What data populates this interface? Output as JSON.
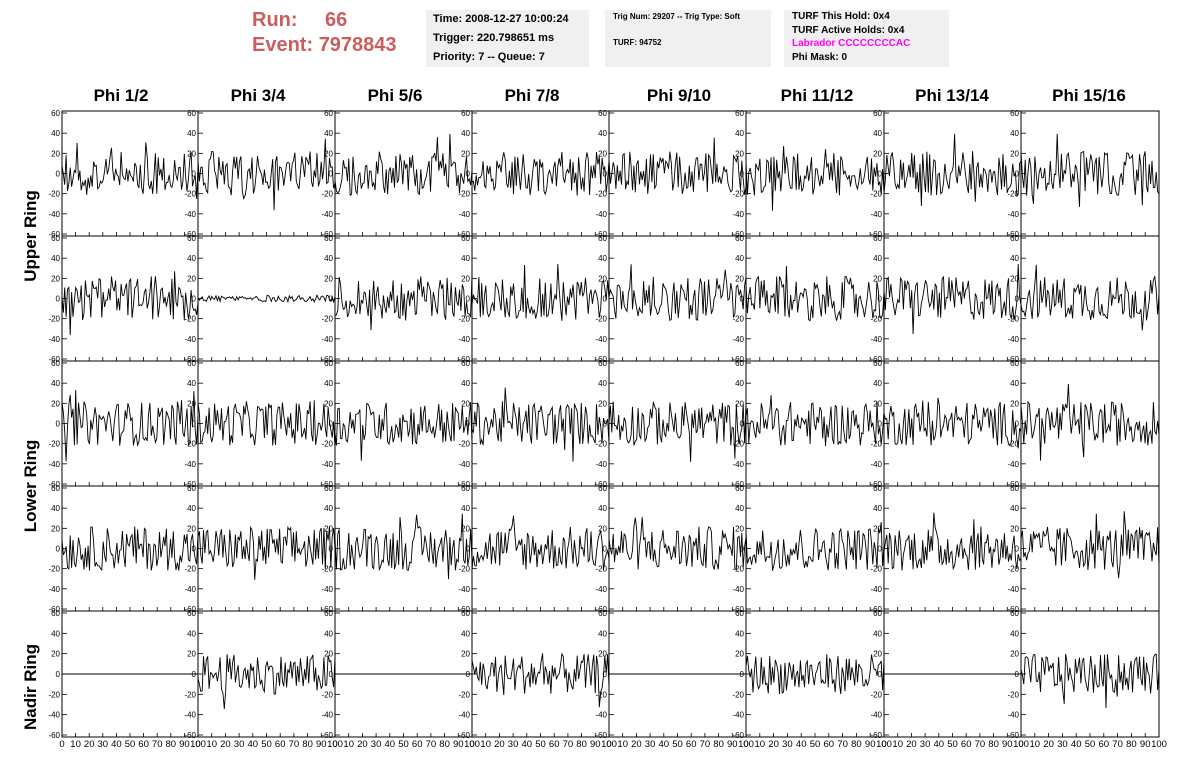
{
  "header": {
    "run_label": "Run:",
    "run_value": "66",
    "event_label": "Event:",
    "event_value": "7978843",
    "time": "Time: 2008-12-27 10:00:24",
    "trigger": "Trigger: 220.798651 ms",
    "priority": "Priority: 7 -- Queue: 7",
    "trig_num": "Trig Num: 29207 -- Trig Type: Soft",
    "turf": "TURF: 94752",
    "turf_this_hold": "TURF This Hold: 0x4",
    "turf_active_holds": "TURF Active Holds: 0x4",
    "labrador": "Labrador CCCCCCCCAC",
    "phi_mask": "Phi Mask: 0"
  },
  "colors": {
    "header_red": "#cd5c5c",
    "labrador_magenta": "#ff00ff",
    "box_bg": "#f0f0f0",
    "trace": "#000000"
  },
  "columns": [
    "Phi 1/2",
    "Phi 3/4",
    "Phi 5/6",
    "Phi 7/8",
    "Phi 9/10",
    "Phi 11/12",
    "Phi 13/14",
    "Phi 15/16"
  ],
  "rings": [
    {
      "label": "Upper Ring",
      "rows": [
        0,
        1
      ]
    },
    {
      "label": "Lower Ring",
      "rows": [
        2,
        3
      ]
    },
    {
      "label": "Nadir Ring",
      "rows": [
        4
      ]
    }
  ],
  "chart_data": {
    "type": "line",
    "grid": false,
    "layout": "5 rows x 8 columns of waveform panels",
    "xlim": [
      0,
      100
    ],
    "ylim": [
      -60,
      60
    ],
    "x_ticks": [
      0,
      10,
      20,
      30,
      40,
      50,
      60,
      70,
      80,
      90,
      100
    ],
    "y_ticks": [
      -60,
      -40,
      -20,
      0,
      20,
      40,
      60
    ],
    "x_tick_labels": [
      "0",
      "10",
      "20",
      "30",
      "40",
      "50",
      "60",
      "70",
      "80",
      "90",
      "100"
    ],
    "y_tick_labels": [
      "-60",
      "-40",
      "-20",
      "0",
      "20",
      "40",
      "60"
    ],
    "samples_per_trace": 100,
    "panel_amplitude": [
      [
        20,
        20,
        20,
        20,
        20,
        20,
        20,
        20
      ],
      [
        20,
        3,
        20,
        20,
        20,
        20,
        20,
        20
      ],
      [
        20,
        20,
        20,
        20,
        20,
        20,
        20,
        20
      ],
      [
        20,
        20,
        20,
        20,
        20,
        20,
        20,
        20
      ],
      [
        0,
        18,
        0,
        18,
        0,
        18,
        0,
        18
      ]
    ]
  }
}
